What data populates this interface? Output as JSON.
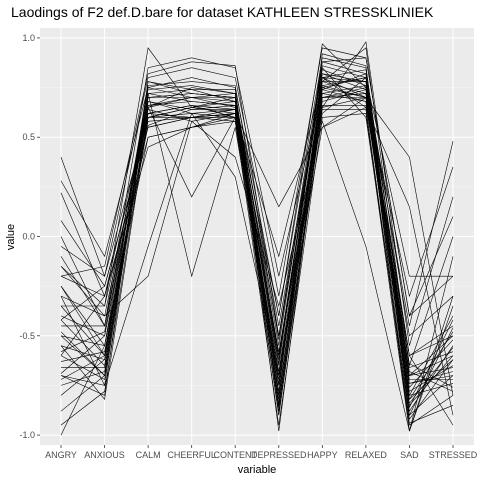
{
  "chart_data": {
    "type": "line",
    "title": "Laodings of F2 def.D.bare for dataset KATHLEEN STRESSKLINIEK",
    "xlabel": "variable",
    "ylabel": "value",
    "categories": [
      "ANGRY",
      "ANXIOUS",
      "CALM",
      "CHEERFUL",
      "CONTENT",
      "DEPRESSED",
      "HAPPY",
      "RELAXED",
      "SAD",
      "STRESSED"
    ],
    "ylim": [
      -1.05,
      1.05
    ],
    "yticks": [
      "-1.0",
      "-0.5",
      "0.0",
      "0.5",
      "1.0"
    ],
    "grid": true,
    "background": "#ebebeb",
    "line_color": "#000000",
    "series": [
      {
        "values": [
          0.4,
          -0.2,
          0.6,
          0.65,
          0.7,
          -0.6,
          0.8,
          0.7,
          -0.6,
          -0.5
        ]
      },
      {
        "values": [
          0.28,
          -0.1,
          0.75,
          0.8,
          0.75,
          -0.4,
          0.9,
          0.85,
          -0.7,
          -0.6
        ]
      },
      {
        "values": [
          0.22,
          -0.3,
          0.65,
          0.7,
          0.65,
          -0.8,
          0.7,
          0.75,
          -0.8,
          -0.4
        ]
      },
      {
        "values": [
          0.08,
          -0.25,
          0.55,
          0.6,
          0.6,
          -0.7,
          0.75,
          0.8,
          -0.5,
          -0.3
        ]
      },
      {
        "values": [
          0.0,
          -0.45,
          0.7,
          0.72,
          0.7,
          -0.55,
          0.85,
          0.6,
          -0.9,
          -0.7
        ]
      },
      {
        "values": [
          -0.05,
          -0.2,
          0.8,
          0.85,
          0.8,
          -0.3,
          0.95,
          0.9,
          -0.4,
          -0.2
        ]
      },
      {
        "values": [
          -0.15,
          -0.35,
          0.6,
          0.65,
          0.62,
          -0.85,
          0.65,
          0.7,
          -0.7,
          -0.5
        ]
      },
      {
        "values": [
          -0.2,
          -0.3,
          0.5,
          0.55,
          0.6,
          -0.7,
          0.55,
          0.65,
          -0.95,
          -0.8
        ]
      },
      {
        "values": [
          -0.25,
          -0.55,
          0.72,
          0.68,
          0.66,
          -0.5,
          0.78,
          0.72,
          -0.85,
          -0.6
        ]
      },
      {
        "values": [
          -0.3,
          -0.4,
          0.65,
          0.75,
          0.72,
          -0.6,
          0.82,
          0.78,
          -0.6,
          -0.45
        ]
      },
      {
        "values": [
          -0.35,
          -0.6,
          0.75,
          0.7,
          0.68,
          -0.75,
          0.72,
          0.76,
          -0.78,
          -0.65
        ]
      },
      {
        "values": [
          -0.4,
          -0.5,
          0.68,
          0.62,
          0.64,
          -0.65,
          0.88,
          0.82,
          -0.88,
          -0.55
        ]
      },
      {
        "values": [
          -0.42,
          -0.65,
          0.78,
          0.74,
          0.74,
          -0.8,
          0.76,
          0.7,
          -0.72,
          -0.72
        ]
      },
      {
        "values": [
          -0.45,
          -0.45,
          0.62,
          0.66,
          0.6,
          -0.9,
          0.68,
          0.74,
          -0.98,
          -0.35
        ]
      },
      {
        "values": [
          -0.48,
          -0.7,
          0.7,
          0.72,
          0.7,
          -0.45,
          0.8,
          0.84,
          -0.66,
          -0.58
        ]
      },
      {
        "values": [
          -0.5,
          -0.55,
          0.58,
          0.6,
          0.58,
          -0.72,
          0.74,
          0.68,
          -0.82,
          -0.48
        ]
      },
      {
        "values": [
          -0.55,
          -0.62,
          0.66,
          0.68,
          0.66,
          -0.62,
          0.86,
          0.8,
          -0.74,
          -0.68
        ]
      },
      {
        "values": [
          -0.58,
          -0.48,
          0.74,
          0.76,
          0.72,
          -0.88,
          0.7,
          0.72,
          -0.92,
          -0.62
        ]
      },
      {
        "values": [
          -0.6,
          -0.72,
          0.64,
          0.58,
          0.62,
          -0.58,
          0.66,
          0.66,
          -0.64,
          -0.76
        ]
      },
      {
        "values": [
          -0.63,
          -0.58,
          0.56,
          0.64,
          0.66,
          -0.78,
          0.92,
          0.86,
          -0.86,
          -0.42
        ]
      },
      {
        "values": [
          -0.66,
          -0.66,
          0.7,
          0.7,
          0.7,
          -0.68,
          0.78,
          0.78,
          -0.76,
          -0.52
        ]
      },
      {
        "values": [
          -0.69,
          -0.5,
          0.62,
          0.66,
          0.64,
          -0.84,
          0.74,
          0.82,
          -0.8,
          -0.74
        ]
      },
      {
        "values": [
          -0.7,
          -0.75,
          0.76,
          0.78,
          0.76,
          -0.52,
          0.84,
          0.76,
          -0.7,
          -0.66
        ]
      },
      {
        "values": [
          -0.72,
          -0.6,
          0.6,
          0.62,
          0.6,
          -0.74,
          0.7,
          0.7,
          -0.84,
          -0.56
        ]
      },
      {
        "values": [
          -0.75,
          -0.68,
          0.72,
          0.74,
          0.68,
          -0.64,
          0.82,
          0.74,
          -0.68,
          -0.78
        ]
      },
      {
        "values": [
          -0.8,
          -0.62,
          0.66,
          0.7,
          0.72,
          -0.86,
          0.76,
          0.8,
          -0.9,
          -0.46
        ]
      },
      {
        "values": [
          -0.88,
          -0.7,
          0.68,
          0.64,
          0.64,
          -0.7,
          0.72,
          0.68,
          -0.74,
          -0.7
        ]
      },
      {
        "values": [
          -0.95,
          -0.78,
          0.62,
          0.6,
          0.62,
          -0.82,
          0.8,
          0.78,
          -0.82,
          -0.62
        ]
      },
      {
        "values": [
          -1.0,
          -0.55,
          0.5,
          0.55,
          0.58,
          -0.95,
          0.6,
          0.62,
          -0.98,
          -0.3
        ]
      },
      {
        "values": [
          -0.35,
          -0.35,
          0.95,
          0.65,
          0.68,
          -0.4,
          0.97,
          0.75,
          -0.45,
          0.48
        ]
      },
      {
        "values": [
          -0.1,
          -0.45,
          0.85,
          0.9,
          0.85,
          -0.2,
          0.75,
          0.7,
          -0.3,
          0.35
        ]
      },
      {
        "values": [
          -0.25,
          -0.6,
          0.65,
          0.2,
          0.6,
          -0.6,
          0.65,
          0.98,
          -0.55,
          0.2
        ]
      },
      {
        "values": [
          -0.5,
          -0.7,
          0.72,
          -0.2,
          0.55,
          -0.75,
          0.78,
          0.95,
          -0.65,
          0.0
        ]
      },
      {
        "values": [
          -0.15,
          -0.4,
          -0.2,
          0.58,
          0.4,
          -0.35,
          0.58,
          -0.05,
          -0.98,
          -0.1
        ]
      },
      {
        "values": [
          -0.3,
          -0.75,
          -0.05,
          0.62,
          0.3,
          -0.7,
          0.62,
          0.8,
          -0.2,
          -0.2
        ]
      },
      {
        "values": [
          -0.6,
          -0.3,
          0.45,
          0.55,
          0.62,
          0.15,
          0.55,
          0.7,
          0.4,
          -0.8
        ]
      },
      {
        "values": [
          -0.42,
          -0.25,
          0.55,
          0.6,
          0.62,
          -0.1,
          0.8,
          0.65,
          0.15,
          -0.9
        ]
      },
      {
        "values": [
          -0.7,
          -0.8,
          0.78,
          0.72,
          0.7,
          -0.98,
          0.7,
          0.72,
          -0.6,
          -0.95
        ]
      },
      {
        "values": [
          -0.2,
          -0.15,
          0.82,
          0.88,
          0.86,
          -0.5,
          0.88,
          0.9,
          -0.4,
          0.1
        ]
      },
      {
        "values": [
          -0.55,
          -0.82,
          0.6,
          0.6,
          0.64,
          -0.9,
          0.64,
          0.64,
          -0.94,
          -0.85
        ]
      }
    ]
  }
}
